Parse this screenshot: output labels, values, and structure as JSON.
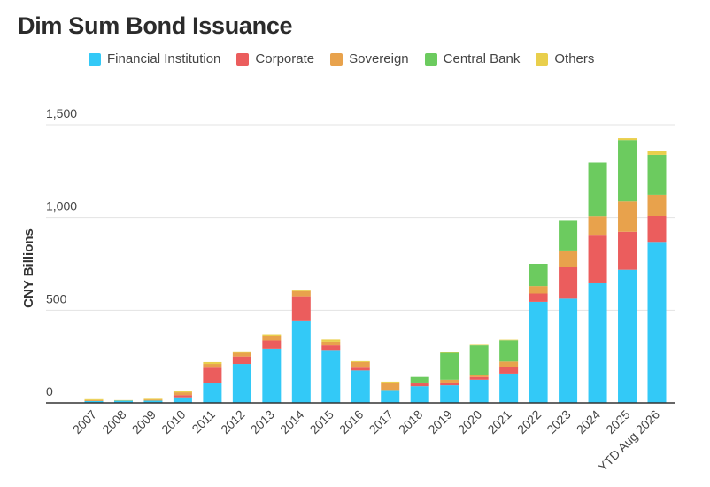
{
  "chart_data": {
    "type": "bar",
    "stacked": true,
    "title": "Dim Sum Bond Issuance",
    "xlabel": "",
    "ylabel": "CNY Billions",
    "ylim": [
      0,
      1500
    ],
    "yticks": [
      0,
      500,
      "1,000",
      "1,500"
    ],
    "ytick_labels": [
      "0",
      "500",
      "1,000",
      "1,500"
    ],
    "grid": true,
    "legend_position": "top",
    "categories": [
      "2007",
      "2008",
      "2009",
      "2010",
      "2011",
      "2012",
      "2013",
      "2014",
      "2015",
      "2016",
      "2017",
      "2018",
      "2019",
      "2020",
      "2021",
      "2022",
      "2023",
      "2024",
      "2025",
      "YTD Aug 2026"
    ],
    "series": [
      {
        "name": "Financial Institution",
        "color": "#33c9f7",
        "values": [
          10,
          12,
          12,
          30,
          105,
          210,
          292,
          445,
          285,
          175,
          65,
          90,
          95,
          125,
          158,
          545,
          562,
          645,
          718,
          868
        ]
      },
      {
        "name": "Corporate",
        "color": "#eb5d5d",
        "values": [
          0,
          0,
          0,
          12,
          85,
          40,
          45,
          130,
          25,
          15,
          0,
          15,
          15,
          15,
          35,
          45,
          172,
          262,
          205,
          140
        ]
      },
      {
        "name": "Sovereign",
        "color": "#e8a24c",
        "values": [
          5,
          0,
          5,
          15,
          20,
          20,
          25,
          28,
          20,
          30,
          45,
          5,
          15,
          10,
          30,
          40,
          88,
          100,
          165,
          115
        ]
      },
      {
        "name": "Central Bank",
        "color": "#6ccb5f",
        "values": [
          0,
          0,
          0,
          0,
          0,
          0,
          0,
          0,
          0,
          0,
          0,
          30,
          145,
          160,
          115,
          120,
          160,
          290,
          330,
          215
        ]
      },
      {
        "name": "Others",
        "color": "#e9cf4c",
        "values": [
          5,
          3,
          5,
          5,
          10,
          8,
          8,
          8,
          12,
          5,
          5,
          0,
          3,
          3,
          3,
          0,
          0,
          0,
          10,
          22
        ]
      }
    ]
  }
}
